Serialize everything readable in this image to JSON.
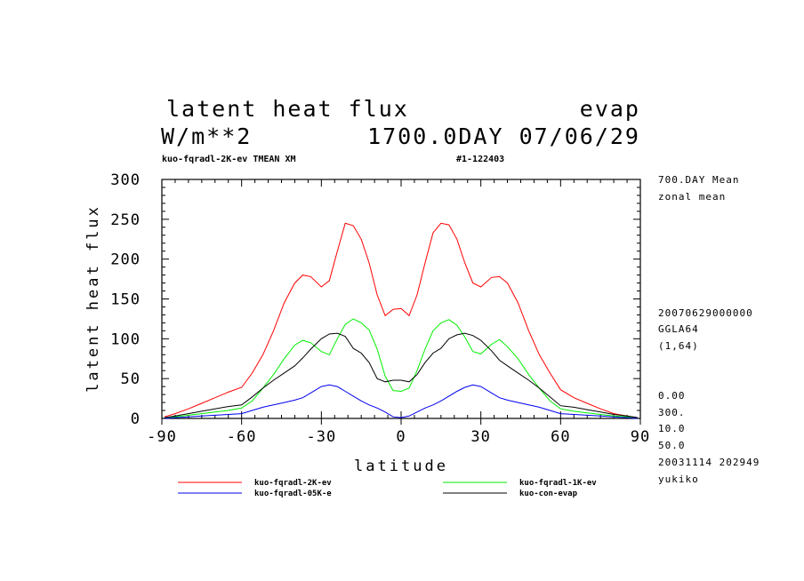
{
  "header": {
    "title": "latent heat flux",
    "title_right": "evap",
    "units": "W/m**2",
    "date_info": "1700.0DAY 07/06/29",
    "run_label": "kuo-fqradl-2K-ev TMEAN XM",
    "run_id": "#1-122403"
  },
  "side_info": {
    "top": [
      "700.DAY Mean",
      "zonal mean"
    ],
    "middle": [
      "20070629000000",
      "GGLA64",
      "(1,64)"
    ],
    "bottom": [
      "0.00",
      "300.",
      "10.0",
      "50.0",
      "20031114 202949",
      "yukiko"
    ]
  },
  "chart_data": {
    "type": "line",
    "title": "latent heat flux",
    "xlabel": "latitude",
    "ylabel": "latent heat flux",
    "xlim": [
      -90,
      90
    ],
    "ylim": [
      0,
      300
    ],
    "xticks": [
      -90,
      -60,
      -30,
      0,
      30,
      60,
      90
    ],
    "xtick_labels": [
      "-90",
      "-60",
      "-30",
      "0",
      "30",
      "60",
      "90"
    ],
    "yticks": [
      0,
      50,
      100,
      150,
      200,
      250,
      300
    ],
    "ytick_labels": [
      "0",
      "50",
      "100",
      "150",
      "200",
      "250",
      "300"
    ],
    "grid": false,
    "legend_placement": "bottom",
    "series": [
      {
        "name": "kuo-fqradl-2K-ev",
        "color": "#ff0000",
        "x": [
          -89,
          -85,
          -80,
          -75,
          -70,
          -65,
          -60,
          -56,
          -52,
          -48,
          -44,
          -40,
          -37,
          -34,
          -30,
          -27,
          -24,
          -21,
          -18,
          -15,
          -12,
          -9,
          -6,
          -3,
          0,
          3,
          6,
          9,
          12,
          15,
          18,
          21,
          24,
          27,
          30,
          34,
          37,
          40,
          44,
          48,
          52,
          56,
          60,
          65,
          70,
          75,
          80,
          85,
          89
        ],
        "y": [
          2,
          6,
          12,
          19,
          26,
          33,
          39,
          57,
          80,
          110,
          145,
          170,
          180,
          178,
          165,
          173,
          210,
          245,
          242,
          225,
          195,
          155,
          129,
          137,
          138,
          129,
          155,
          195,
          233,
          245,
          243,
          225,
          195,
          170,
          165,
          177,
          178,
          170,
          145,
          110,
          80,
          57,
          36,
          26,
          19,
          12,
          6,
          3,
          1
        ]
      },
      {
        "name": "kuo-fqradl-1K-ev",
        "color": "#00ee00",
        "x": [
          -89,
          -85,
          -80,
          -75,
          -70,
          -65,
          -60,
          -56,
          -52,
          -48,
          -44,
          -40,
          -37,
          -34,
          -30,
          -27,
          -24,
          -21,
          -18,
          -15,
          -12,
          -9,
          -6,
          -3,
          0,
          3,
          6,
          9,
          12,
          15,
          18,
          21,
          24,
          27,
          30,
          34,
          37,
          40,
          44,
          48,
          52,
          56,
          60,
          65,
          70,
          75,
          80,
          85,
          89
        ],
        "y": [
          1,
          2,
          4,
          6,
          8,
          10,
          13,
          22,
          38,
          55,
          75,
          92,
          98,
          95,
          84,
          80,
          100,
          118,
          125,
          120,
          111,
          87,
          53,
          35,
          34,
          38,
          60,
          87,
          110,
          120,
          124,
          117,
          102,
          84,
          81,
          93,
          99,
          90,
          75,
          55,
          38,
          22,
          12,
          9,
          7,
          5,
          3,
          2,
          1
        ]
      },
      {
        "name": "kuo-fqradl-05K-e",
        "color": "#0000ee",
        "x": [
          -89,
          -85,
          -80,
          -75,
          -70,
          -65,
          -60,
          -56,
          -52,
          -48,
          -44,
          -40,
          -37,
          -34,
          -30,
          -27,
          -24,
          -21,
          -18,
          -15,
          -12,
          -9,
          -6,
          -3,
          0,
          3,
          6,
          9,
          12,
          15,
          18,
          21,
          24,
          27,
          30,
          34,
          37,
          40,
          44,
          48,
          52,
          56,
          60,
          65,
          70,
          75,
          80,
          85,
          89
        ],
        "y": [
          0,
          1,
          2,
          3,
          4,
          5,
          6,
          10,
          14,
          17,
          20,
          23,
          26,
          32,
          40,
          42,
          40,
          34,
          28,
          22,
          17,
          13,
          8,
          2,
          1,
          3,
          8,
          13,
          17,
          22,
          28,
          34,
          39,
          42,
          40,
          32,
          26,
          23,
          20,
          17,
          14,
          10,
          6,
          5,
          4,
          3,
          2,
          1,
          0
        ]
      },
      {
        "name": "kuo-con-evap",
        "color": "#000000",
        "x": [
          -89,
          -85,
          -80,
          -75,
          -70,
          -65,
          -60,
          -56,
          -52,
          -48,
          -44,
          -40,
          -37,
          -34,
          -30,
          -27,
          -24,
          -21,
          -18,
          -15,
          -12,
          -9,
          -6,
          -3,
          0,
          3,
          6,
          9,
          12,
          15,
          18,
          21,
          24,
          27,
          30,
          34,
          37,
          40,
          44,
          48,
          52,
          56,
          60,
          65,
          70,
          75,
          80,
          85,
          89
        ],
        "y": [
          1,
          3,
          6,
          9,
          12,
          15,
          17,
          27,
          38,
          48,
          57,
          66,
          76,
          87,
          100,
          106,
          107,
          103,
          88,
          82,
          70,
          50,
          46,
          48,
          48,
          46,
          55,
          70,
          82,
          88,
          100,
          105,
          107,
          104,
          98,
          85,
          73,
          66,
          57,
          48,
          38,
          27,
          16,
          14,
          11,
          8,
          5,
          3,
          1
        ]
      }
    ]
  }
}
